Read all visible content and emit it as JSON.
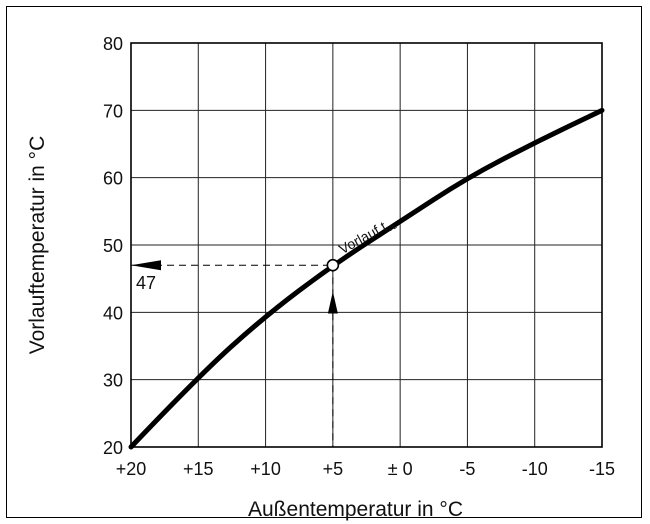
{
  "chart_data": {
    "type": "line",
    "title": "",
    "xlabel": "Außentemperatur in °C",
    "ylabel": "Vorlauftemperatur in °C",
    "x_ticks": [
      20,
      15,
      10,
      5,
      0,
      -5,
      -10,
      -15
    ],
    "x_tick_labels": [
      "+20",
      "+15",
      "+10",
      "+5",
      "± 0",
      "-5",
      "-10",
      "-15"
    ],
    "y_ticks": [
      20,
      30,
      40,
      50,
      60,
      70,
      80
    ],
    "xlim": [
      20,
      -15
    ],
    "ylim": [
      20,
      80
    ],
    "grid": true,
    "series": [
      {
        "name": "Vorlauf t_VL",
        "label_main": "Vorlauf t",
        "label_sub": "VL",
        "x": [
          20,
          15,
          10,
          5,
          0,
          -5,
          -10,
          -15
        ],
        "y": [
          20,
          30.5,
          39.5,
          47,
          53.5,
          60,
          65.2,
          70
        ]
      }
    ],
    "readout": {
      "x": 5,
      "y": 47,
      "label": "47"
    }
  }
}
